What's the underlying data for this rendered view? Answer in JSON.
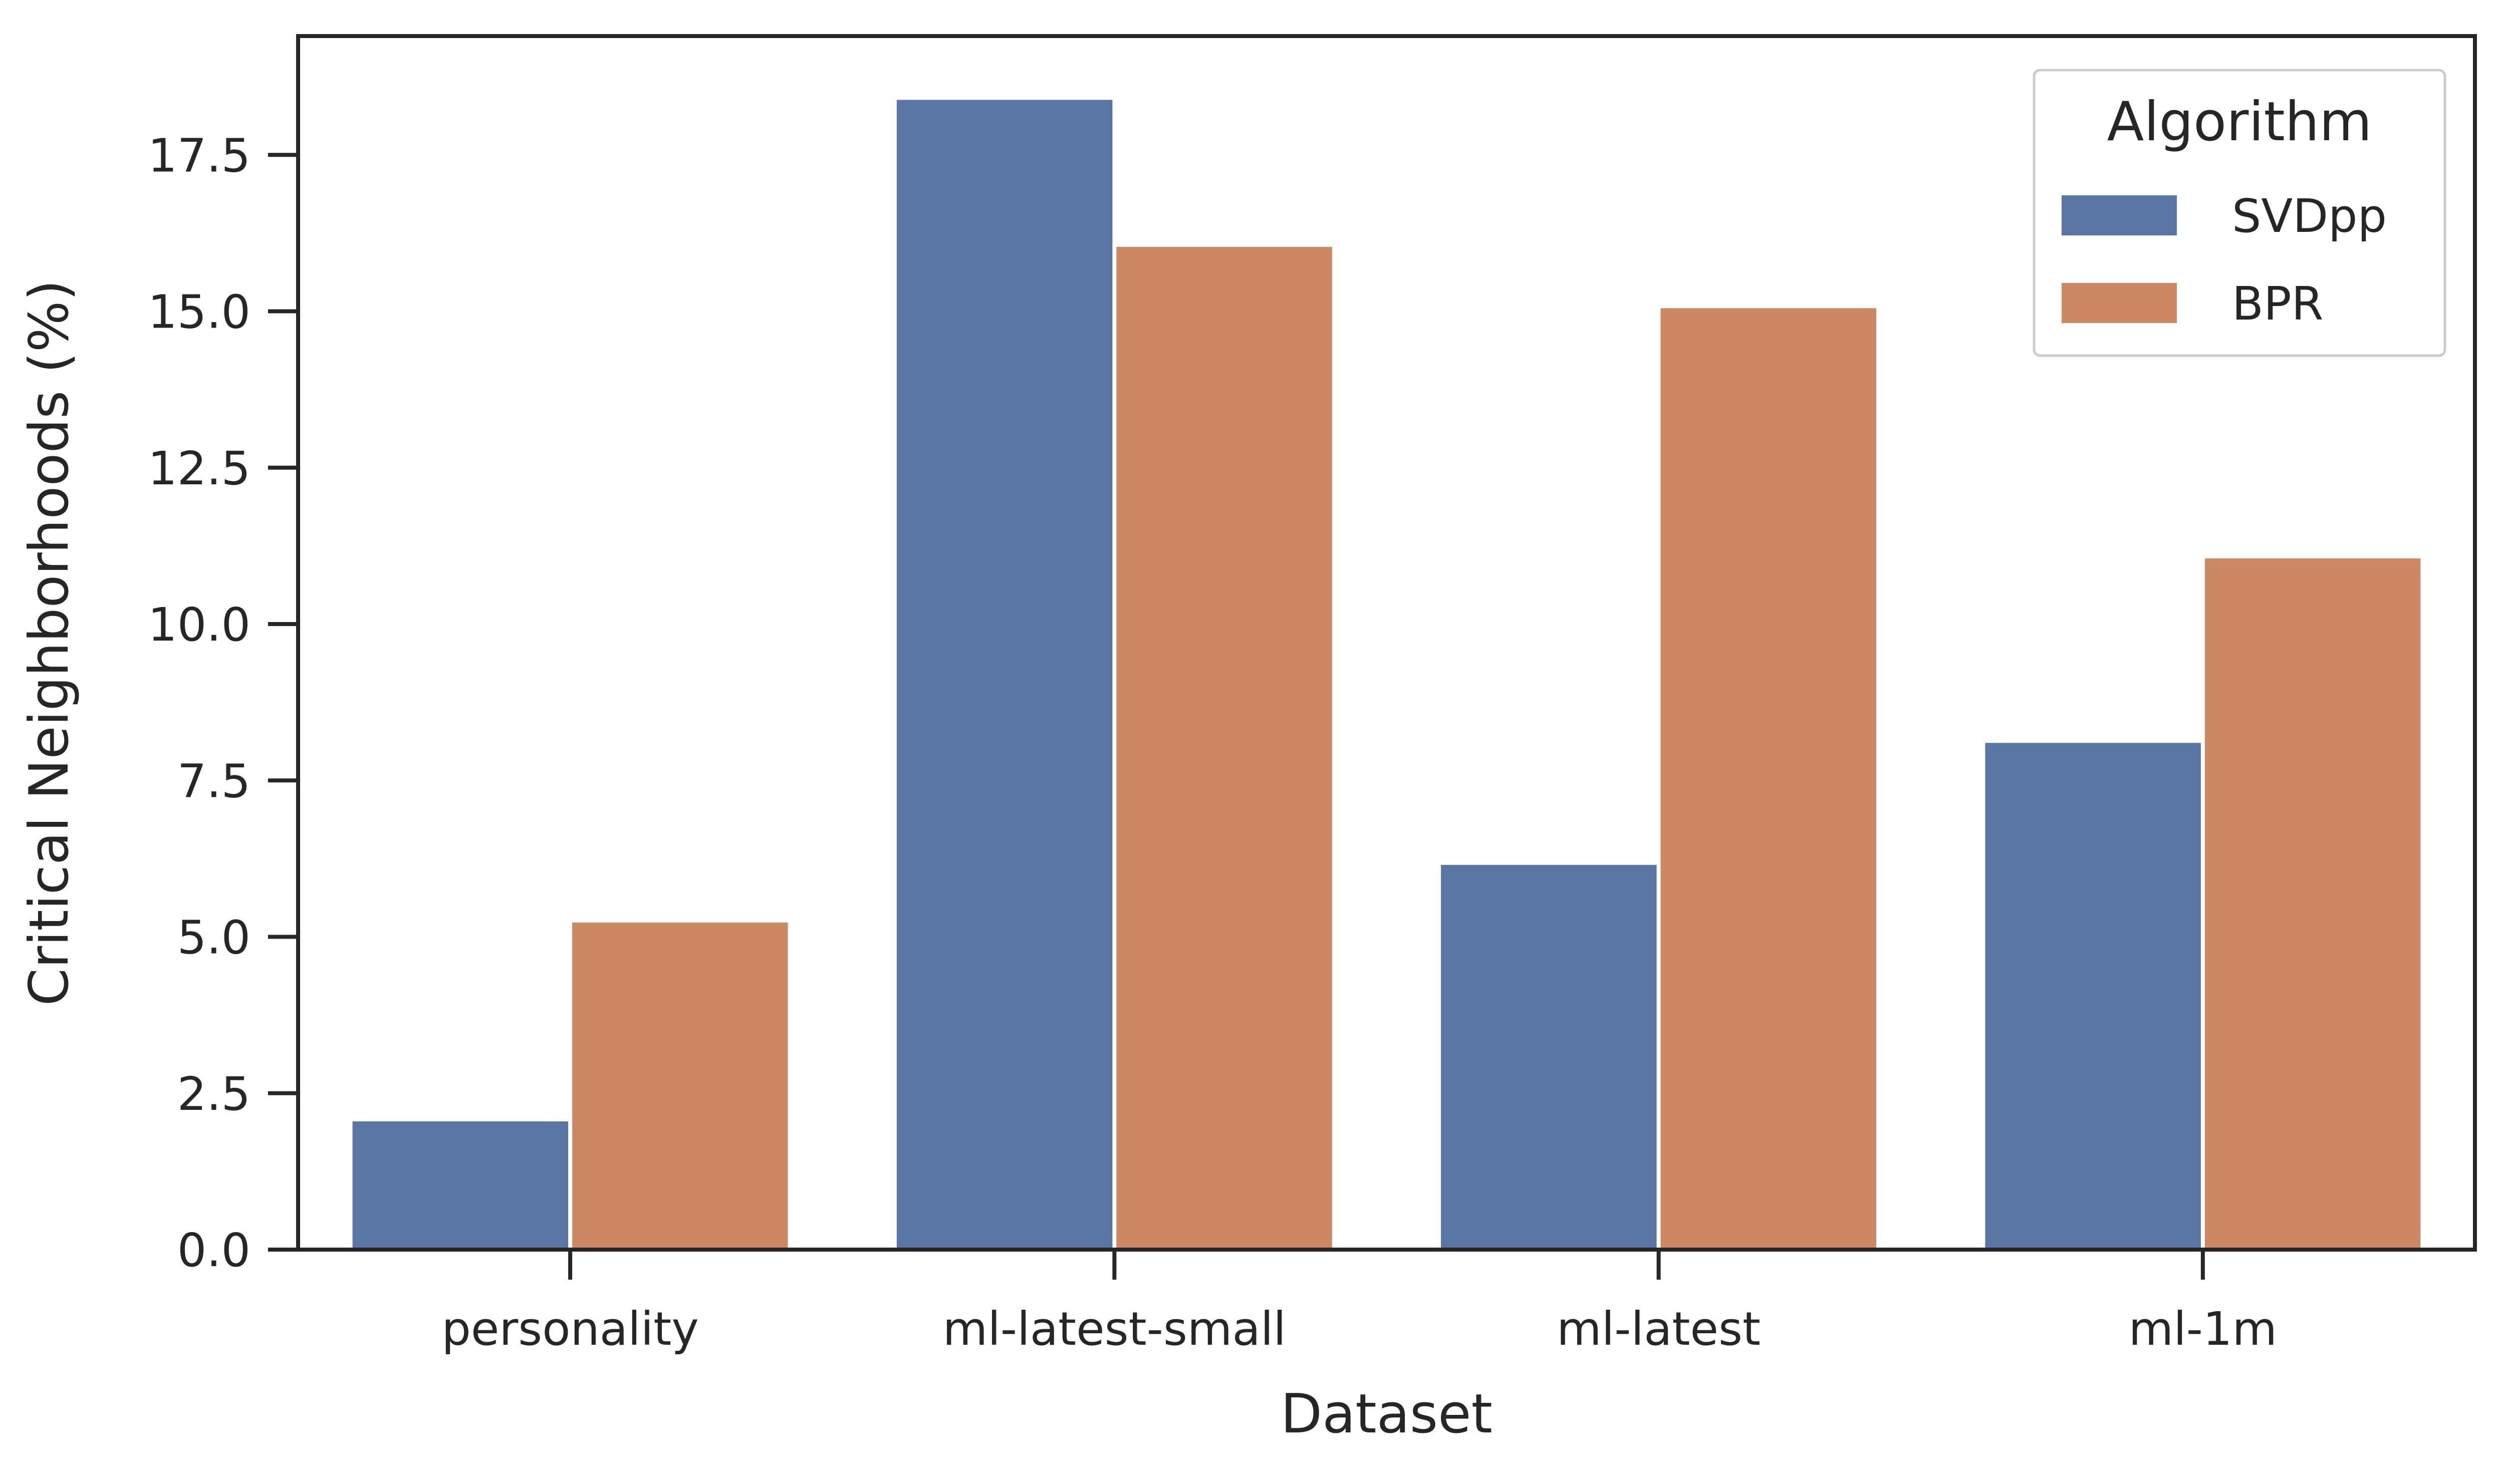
{
  "chart_data": {
    "type": "bar",
    "categories": [
      "personality",
      "ml-latest-small",
      "ml-latest",
      "ml-1m"
    ],
    "series": [
      {
        "name": "SVDpp",
        "color": "#5975a4",
        "values": [
          2.05,
          18.38,
          6.15,
          8.1
        ]
      },
      {
        "name": "BPR",
        "color": "#cc8963",
        "values": [
          5.23,
          16.03,
          15.05,
          11.05
        ]
      }
    ],
    "xlabel": "Dataset",
    "ylabel": "Critical Neighborhoods (%)",
    "ylim": [
      0,
      19.4
    ],
    "yticks": [
      "0.0",
      "2.5",
      "5.0",
      "7.5",
      "10.0",
      "12.5",
      "15.0",
      "17.5"
    ],
    "grid": false,
    "legend": {
      "title": "Algorithm",
      "placement": "top-right"
    }
  }
}
